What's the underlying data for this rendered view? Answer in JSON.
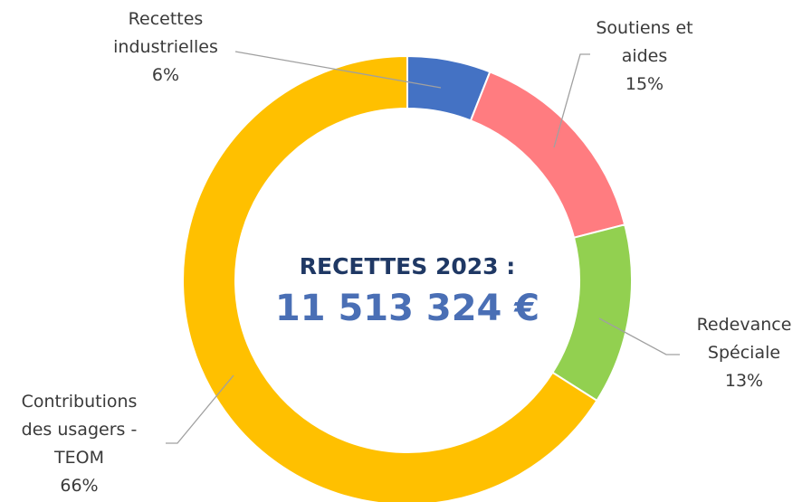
{
  "chart_data": {
    "type": "donut",
    "title": "RECETTES 2023 :",
    "total_label": "11 513 324 €",
    "categories": [
      "Recettes industrielles",
      "Soutiens et aides",
      "Redevance Spéciale",
      "Contributions des usagers - TEOM"
    ],
    "values": [
      6,
      15,
      13,
      66
    ],
    "value_labels": [
      "6%",
      "15%",
      "13%",
      "66%"
    ],
    "colors": [
      "#4472c4",
      "#ff7c80",
      "#92d050",
      "#ffc000"
    ]
  }
}
